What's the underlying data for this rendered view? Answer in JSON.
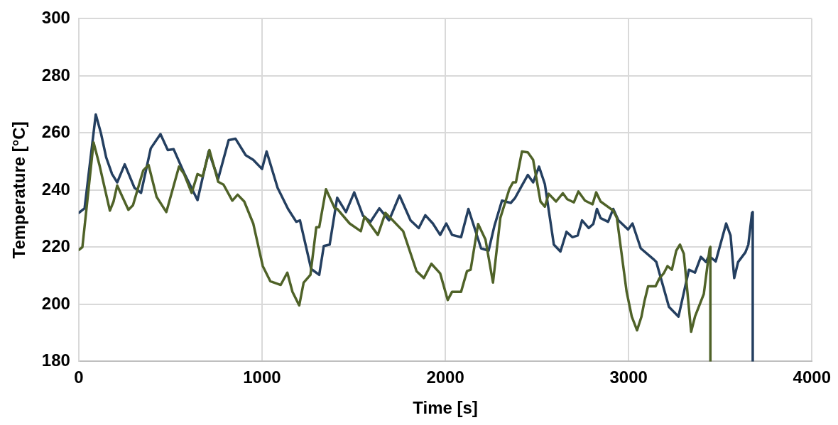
{
  "chart_data": {
    "type": "line",
    "xlabel": "Time [s]",
    "ylabel": "Temperature [°C]",
    "xlim": [
      0,
      4000
    ],
    "ylim": [
      180,
      300
    ],
    "xticks": [
      0,
      1000,
      2000,
      3000,
      4000
    ],
    "yticks": [
      180,
      200,
      220,
      240,
      260,
      280,
      300
    ],
    "grid": true,
    "marker": "none",
    "series": [
      {
        "color": "#4f6228",
        "x": [
          0,
          20,
          81,
          113,
          170,
          190,
          210,
          271,
          296,
          352,
          381,
          425,
          478,
          547,
          575,
          616,
          648,
          676,
          713,
          761,
          790,
          838,
          867,
          903,
          952,
          1004,
          1045,
          1102,
          1138,
          1166,
          1203,
          1227,
          1264,
          1296,
          1312,
          1349,
          1397,
          1410,
          1478,
          1539,
          1559,
          1632,
          1673,
          1713,
          1770,
          1843,
          1883,
          1924,
          1972,
          2013,
          2037,
          2086,
          2118,
          2138,
          2179,
          2219,
          2260,
          2300,
          2349,
          2369,
          2385,
          2418,
          2450,
          2479,
          2519,
          2543,
          2564,
          2604,
          2641,
          2665,
          2701,
          2726,
          2762,
          2803,
          2823,
          2847,
          2916,
          2936,
          2989,
          3017,
          3046,
          3070,
          3086,
          3106,
          3147,
          3167,
          3191,
          3212,
          3236,
          3260,
          3280,
          3301,
          3341,
          3362,
          3410,
          3442,
          3446,
          3446
        ],
        "values": [
          219,
          220,
          256.7,
          248.8,
          232.8,
          236,
          241.6,
          233.1,
          234.7,
          246.9,
          248.8,
          237.6,
          232.3,
          248.2,
          245.6,
          239,
          245.6,
          244.8,
          254,
          242.9,
          241.9,
          236.3,
          238.4,
          236,
          228.3,
          213.4,
          208.1,
          206.8,
          211.1,
          204.4,
          199.6,
          207.6,
          210.3,
          227,
          227,
          240.3,
          233.6,
          233.4,
          228.3,
          225.6,
          230.7,
          224.3,
          232,
          229.4,
          225.6,
          211.6,
          209.2,
          214.2,
          210.8,
          201.5,
          204.4,
          204.4,
          211.6,
          212.1,
          228.1,
          222.7,
          207.6,
          230.2,
          240.3,
          242.7,
          242.7,
          253.5,
          253.2,
          250.6,
          236,
          234.2,
          238.7,
          236,
          238.9,
          236.8,
          235.7,
          239.5,
          236.3,
          235,
          239.2,
          236,
          232.8,
          230.2,
          204.4,
          195.7,
          190.9,
          195.7,
          201,
          206.3,
          206.3,
          209,
          210.8,
          213.4,
          212.1,
          218.8,
          220.9,
          217.7,
          190.4,
          195.7,
          203.6,
          219.6,
          220.1,
          180
        ]
      },
      {
        "color": "#243f60",
        "x": [
          0,
          32,
          93,
          121,
          150,
          182,
          210,
          251,
          304,
          340,
          393,
          446,
          486,
          518,
          575,
          648,
          709,
          761,
          818,
          855,
          911,
          952,
          1000,
          1025,
          1085,
          1142,
          1187,
          1207,
          1268,
          1312,
          1337,
          1369,
          1410,
          1458,
          1503,
          1551,
          1592,
          1640,
          1693,
          1750,
          1810,
          1855,
          1891,
          1932,
          1972,
          2005,
          2037,
          2086,
          2126,
          2195,
          2236,
          2268,
          2309,
          2357,
          2381,
          2418,
          2450,
          2479,
          2511,
          2543,
          2592,
          2628,
          2661,
          2693,
          2722,
          2746,
          2782,
          2807,
          2827,
          2847,
          2888,
          2916,
          2944,
          2997,
          3021,
          3066,
          3139,
          3151,
          3220,
          3272,
          3329,
          3362,
          3394,
          3422,
          3438,
          3475,
          3532,
          3556,
          3576,
          3597,
          3637,
          3653,
          3673,
          3677,
          3677
        ],
        "values": [
          232,
          233.6,
          266.5,
          260,
          251.4,
          245.6,
          242.7,
          249,
          240.8,
          239,
          254.6,
          259.6,
          254,
          254.3,
          246,
          236.5,
          253.5,
          244,
          257.5,
          258,
          252.2,
          250.6,
          247.4,
          253.5,
          240.8,
          233.4,
          228.9,
          229.4,
          212.4,
          210.3,
          220.4,
          220.9,
          237.3,
          232.3,
          239.2,
          231,
          228.9,
          233.6,
          229.4,
          238.1,
          229.4,
          226.7,
          231.2,
          228.3,
          224.3,
          228.3,
          224.3,
          223.5,
          233.4,
          219.6,
          218.8,
          227.5,
          236.3,
          235.5,
          237.3,
          241.6,
          245.3,
          242.7,
          248.2,
          242.1,
          220.9,
          218.5,
          225.4,
          223.5,
          224.1,
          229.4,
          226.7,
          228.1,
          233.4,
          230.2,
          228.9,
          233.4,
          229.4,
          226.2,
          228.3,
          219.6,
          215.6,
          214.8,
          199.1,
          195.7,
          212.1,
          211.1,
          216.6,
          214.8,
          217,
          215,
          228.3,
          224.1,
          209.2,
          214.8,
          218.2,
          220.9,
          232,
          232.3,
          180
        ]
      }
    ]
  }
}
